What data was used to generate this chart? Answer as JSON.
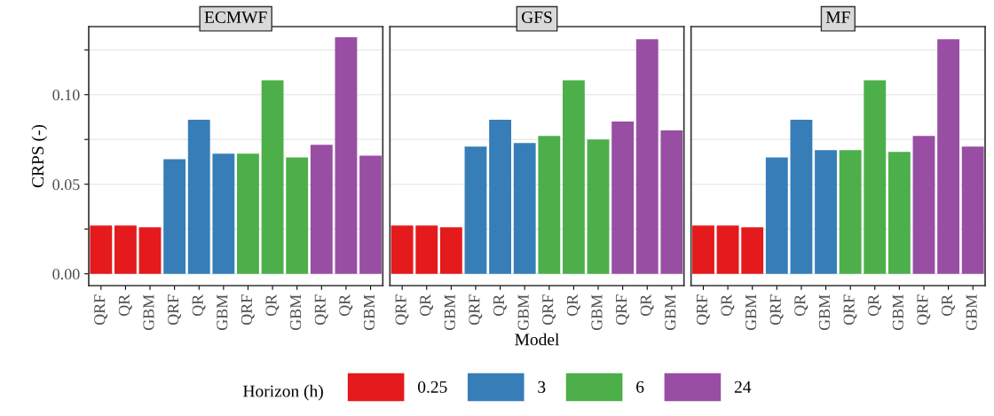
{
  "chart_data": [
    {
      "type": "bar",
      "title": "ECMWF",
      "ylabel": "CRPS (-)",
      "categories": [
        "QRF",
        "QR",
        "GBM",
        "QRF",
        "QR",
        "GBM",
        "QRF",
        "QR",
        "GBM",
        "QRF",
        "QR",
        "GBM"
      ],
      "series": [
        {
          "color": "#e41a1c",
          "values": [
            0.027,
            0.027,
            0.026,
            null,
            null,
            null,
            null,
            null,
            null,
            null,
            null,
            null
          ]
        },
        {
          "color": "#377eb8",
          "values": [
            null,
            null,
            null,
            0.064,
            0.086,
            0.067,
            null,
            null,
            null,
            null,
            null,
            null
          ]
        },
        {
          "color": "#4daf4a",
          "values": [
            null,
            null,
            null,
            null,
            null,
            null,
            0.067,
            0.108,
            0.065,
            null,
            null,
            null
          ]
        },
        {
          "color": "#984ea3",
          "values": [
            null,
            null,
            null,
            null,
            null,
            null,
            null,
            null,
            null,
            0.072,
            0.132,
            0.066
          ]
        }
      ],
      "ylim": [
        -0.0066,
        0.138
      ],
      "yticks": [
        {
          "value": 0,
          "label": "0.00"
        },
        {
          "value": 0.025,
          "label": null
        },
        {
          "value": 0.05,
          "label": "0.05"
        },
        {
          "value": 0.075,
          "label": null
        },
        {
          "value": 0.1,
          "label": "0.10"
        },
        {
          "value": 0.125,
          "label": null
        }
      ],
      "grid": "y"
    },
    {
      "type": "bar",
      "title": "GFS",
      "xlabel": "Model",
      "legend_title": "Horizon (h)",
      "legend": "bottom",
      "categories": [
        "QRF",
        "QR",
        "GBM",
        "QRF",
        "QR",
        "GBM",
        "QRF",
        "QR",
        "GBM",
        "QRF",
        "QR",
        "GBM"
      ],
      "series": [
        {
          "name": "0.25",
          "color": "#e41a1c",
          "values": [
            0.027,
            0.027,
            0.026,
            null,
            null,
            null,
            null,
            null,
            null,
            null,
            null,
            null
          ]
        },
        {
          "name": "3",
          "color": "#377eb8",
          "values": [
            null,
            null,
            null,
            0.071,
            0.086,
            0.073,
            null,
            null,
            null,
            null,
            null,
            null
          ]
        },
        {
          "name": "6",
          "color": "#4daf4a",
          "values": [
            null,
            null,
            null,
            null,
            null,
            null,
            0.077,
            0.108,
            0.075,
            null,
            null,
            null
          ]
        },
        {
          "name": "24",
          "color": "#984ea3",
          "values": [
            null,
            null,
            null,
            null,
            null,
            null,
            null,
            null,
            null,
            0.085,
            0.131,
            0.08
          ]
        }
      ],
      "ylim": [
        -0.0066,
        0.138
      ],
      "yticks": [
        {
          "value": 0,
          "label": null
        },
        {
          "value": 0.025,
          "label": null
        },
        {
          "value": 0.05,
          "label": null
        },
        {
          "value": 0.075,
          "label": null
        },
        {
          "value": 0.1,
          "label": null
        },
        {
          "value": 0.125,
          "label": null
        }
      ],
      "grid": "y",
      "tick_labels": "x"
    },
    {
      "type": "bar",
      "title": "MF",
      "categories": [
        "QRF",
        "QR",
        "GBM",
        "QRF",
        "QR",
        "GBM",
        "QRF",
        "QR",
        "GBM",
        "QRF",
        "QR",
        "GBM"
      ],
      "series": [
        {
          "color": "#e41a1c",
          "values": [
            0.027,
            0.027,
            0.026,
            null,
            null,
            null,
            null,
            null,
            null,
            null,
            null,
            null
          ]
        },
        {
          "color": "#377eb8",
          "values": [
            null,
            null,
            null,
            0.065,
            0.086,
            0.069,
            null,
            null,
            null,
            null,
            null,
            null
          ]
        },
        {
          "color": "#4daf4a",
          "values": [
            null,
            null,
            null,
            null,
            null,
            null,
            0.069,
            0.108,
            0.068,
            null,
            null,
            null
          ]
        },
        {
          "color": "#984ea3",
          "values": [
            null,
            null,
            null,
            null,
            null,
            null,
            null,
            null,
            null,
            0.077,
            0.131,
            0.071
          ]
        }
      ],
      "ylim": [
        -0.0066,
        0.138
      ],
      "yticks": [
        {
          "value": 0,
          "label": null
        },
        {
          "value": 0.025,
          "label": null
        },
        {
          "value": 0.05,
          "label": null
        },
        {
          "value": 0.075,
          "label": null
        },
        {
          "value": 0.1,
          "label": null
        },
        {
          "value": 0.125,
          "label": null
        }
      ],
      "grid": "y",
      "tick_labels": "x"
    }
  ]
}
